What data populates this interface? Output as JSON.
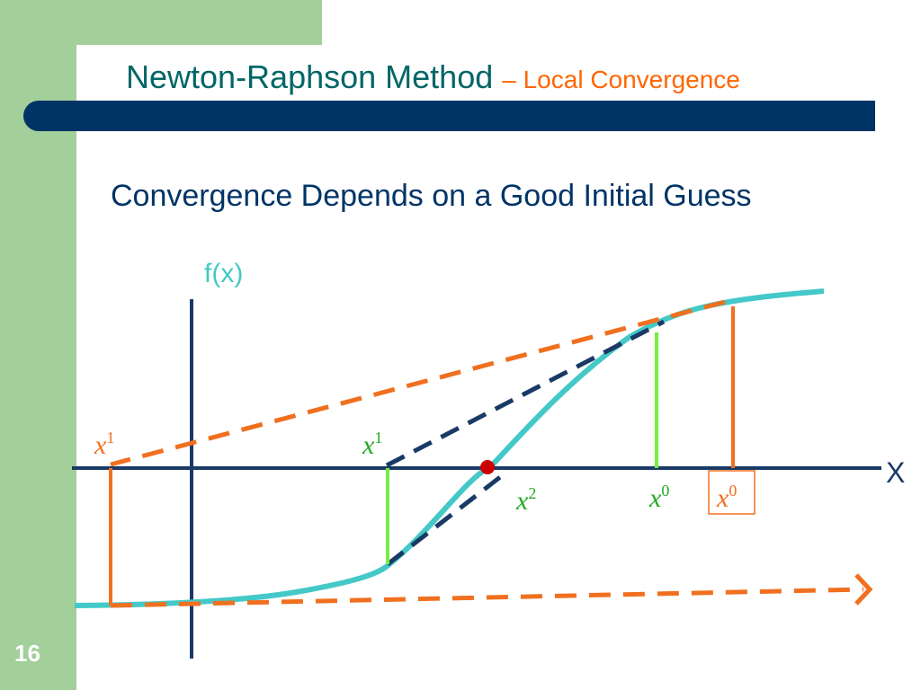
{
  "slide": {
    "title": "Newton-Raphson Method",
    "title_suffix": "– Local Convergence",
    "subtitle": "Convergence Depends on a Good Initial Guess",
    "page_number": "16"
  },
  "diagram": {
    "y_axis_label": "f(x)",
    "x_axis_label": "X",
    "x_labels": {
      "bad_x1": {
        "base": "x",
        "sup": "1"
      },
      "good_x1": {
        "base": "x",
        "sup": "1"
      },
      "good_x2": {
        "base": "x",
        "sup": "2"
      },
      "good_x0": {
        "base": "x",
        "sup": "0"
      },
      "bad_x0": {
        "base": "x",
        "sup": "0"
      }
    },
    "colors": {
      "curve": "#44c8c8",
      "good_tangent": "#1a3a66",
      "bad_tangent": "#f07020",
      "good_guide": "#77ee44",
      "bad_guide": "#f07020",
      "root": "#cc0000",
      "axes": "#1a3a66"
    }
  }
}
